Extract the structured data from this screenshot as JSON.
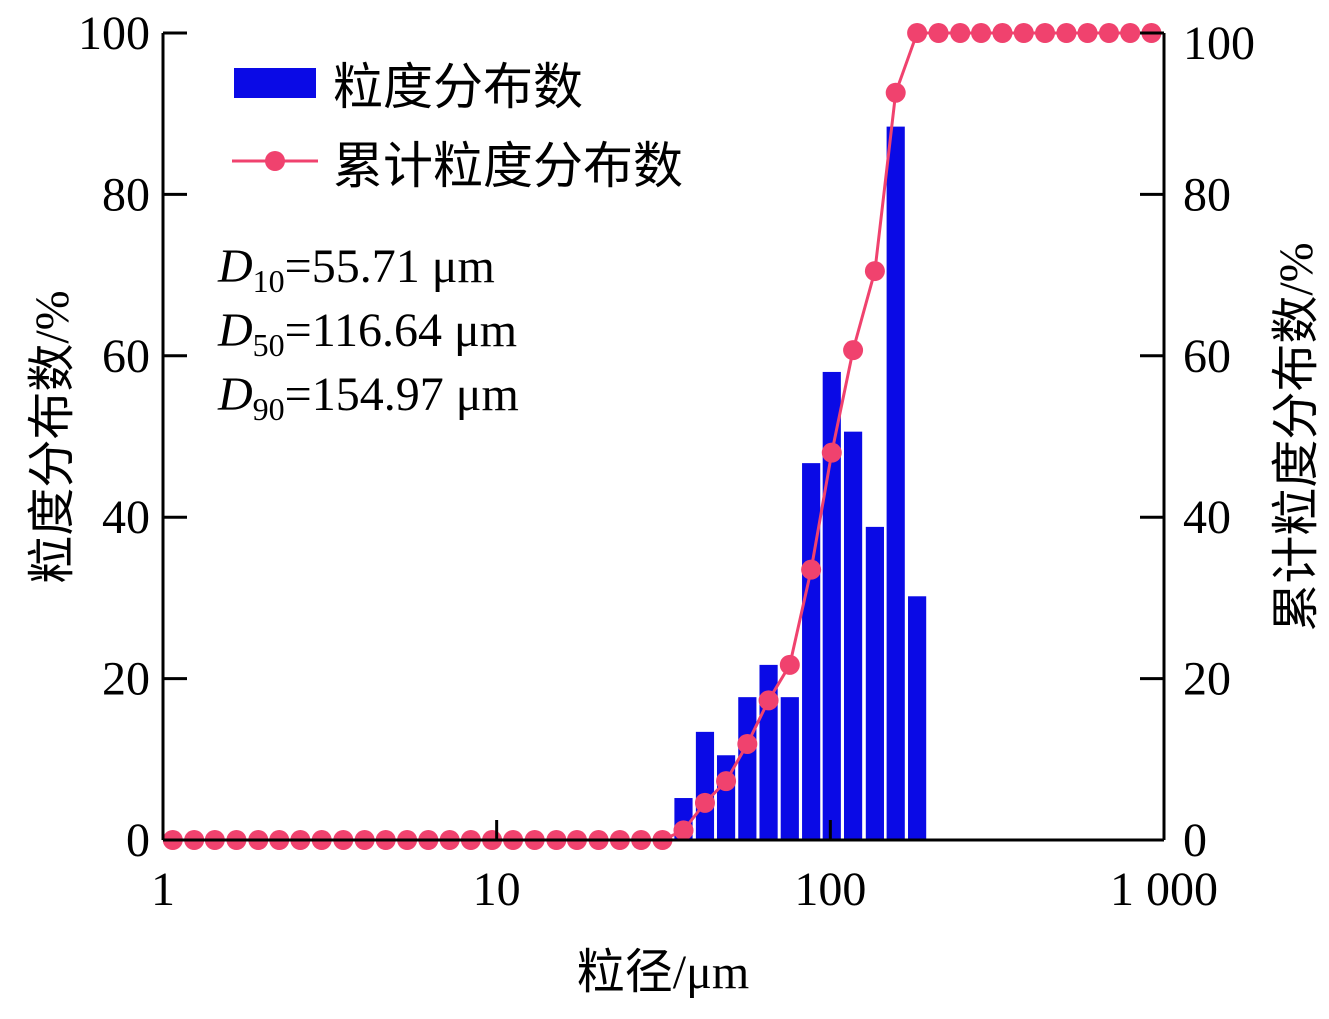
{
  "chart_data": {
    "type": "bar+line",
    "xlabel": "粒径/μm",
    "ylabel_left": "粒度分布数/%",
    "ylabel_right": "累计粒度分布数/%",
    "xscale": "log",
    "xlim": [
      1,
      1000
    ],
    "ylim": [
      0,
      100
    ],
    "x_ticks": [
      "1",
      "10",
      "100",
      "1 000"
    ],
    "x_tick_values": [
      1,
      10,
      100,
      1000
    ],
    "y_ticks": [
      "0",
      "20",
      "40",
      "60",
      "80",
      "100"
    ],
    "y_tick_values": [
      0,
      20,
      40,
      60,
      80,
      100
    ],
    "legend": {
      "placement": "top-left",
      "bar_label": "粒度分布数",
      "line_label": "累计粒度分布数"
    },
    "colors": {
      "bar": "#0a0ae6",
      "line": "#f0426e",
      "axis": "#000000"
    },
    "annotations": [
      {
        "sym": "D",
        "sub": "10",
        "text": "=55.71 μm"
      },
      {
        "sym": "D",
        "sub": "50",
        "text": "=116.64 μm"
      },
      {
        "sym": "D",
        "sub": "90",
        "text": "=154.97 μm"
      }
    ],
    "series": [
      {
        "name": "粒度分布数",
        "type": "bar",
        "x": [
          36.3,
          42.1,
          48.7,
          56.4,
          65.3,
          75.6,
          87.6,
          101,
          117,
          136,
          157,
          182
        ],
        "values": [
          5.2,
          13.4,
          10.5,
          17.7,
          21.7,
          17.7,
          46.7,
          58.0,
          50.6,
          38.8,
          88.4,
          30.2
        ]
      },
      {
        "name": "累计粒度分布数",
        "type": "line",
        "x": [
          1.07,
          1.24,
          1.43,
          1.66,
          1.93,
          2.23,
          2.58,
          2.99,
          3.47,
          4.02,
          4.65,
          5.39,
          6.24,
          7.23,
          8.37,
          9.69,
          11.2,
          13.0,
          15.1,
          17.4,
          20.2,
          23.4,
          27.1,
          31.4,
          36.3,
          42.1,
          48.7,
          56.4,
          65.3,
          75.6,
          87.6,
          101,
          117,
          136,
          157,
          182,
          211,
          245,
          283,
          328,
          380,
          440,
          510,
          590,
          684,
          792,
          917
        ],
        "values": [
          0,
          0,
          0,
          0,
          0,
          0,
          0,
          0,
          0,
          0,
          0,
          0,
          0,
          0,
          0,
          0,
          0,
          0,
          0,
          0,
          0,
          0,
          0,
          0,
          1.2,
          4.6,
          7.3,
          11.9,
          17.3,
          21.7,
          33.5,
          48.0,
          60.7,
          70.5,
          92.6,
          100,
          100,
          100,
          100,
          100,
          100,
          100,
          100,
          100,
          100,
          100,
          100
        ]
      }
    ]
  }
}
